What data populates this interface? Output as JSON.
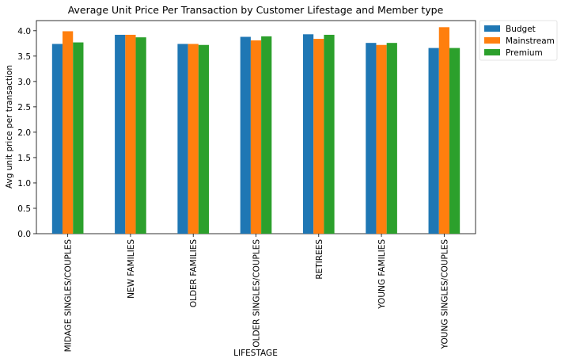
{
  "chart_data": {
    "type": "bar",
    "title": "Average Unit Price Per Transaction by Customer Lifestage and Member type",
    "xlabel": "LIFESTAGE",
    "ylabel": "Avg unit price per transaction",
    "ylim": [
      0,
      4.2
    ],
    "yticks": [
      "0.0",
      "0.5",
      "1.0",
      "1.5",
      "2.0",
      "2.5",
      "3.0",
      "3.5",
      "4.0"
    ],
    "grid": false,
    "legend_position": "outside-top-right",
    "categories": [
      "MIDAGE SINGLES/COUPLES",
      "NEW FAMILIES",
      "OLDER FAMILIES",
      "OLDER SINGLES/COUPLES",
      "RETIREES",
      "YOUNG FAMILIES",
      "YOUNG SINGLES/COUPLES"
    ],
    "series": [
      {
        "name": "Budget",
        "color": "#1f77b4",
        "values": [
          3.74,
          3.92,
          3.74,
          3.88,
          3.93,
          3.76,
          3.66
        ]
      },
      {
        "name": "Mainstream",
        "color": "#ff7f0e",
        "values": [
          3.99,
          3.92,
          3.74,
          3.81,
          3.84,
          3.72,
          4.07
        ]
      },
      {
        "name": "Premium",
        "color": "#2ca02c",
        "values": [
          3.77,
          3.87,
          3.72,
          3.89,
          3.92,
          3.76,
          3.66
        ]
      }
    ]
  }
}
